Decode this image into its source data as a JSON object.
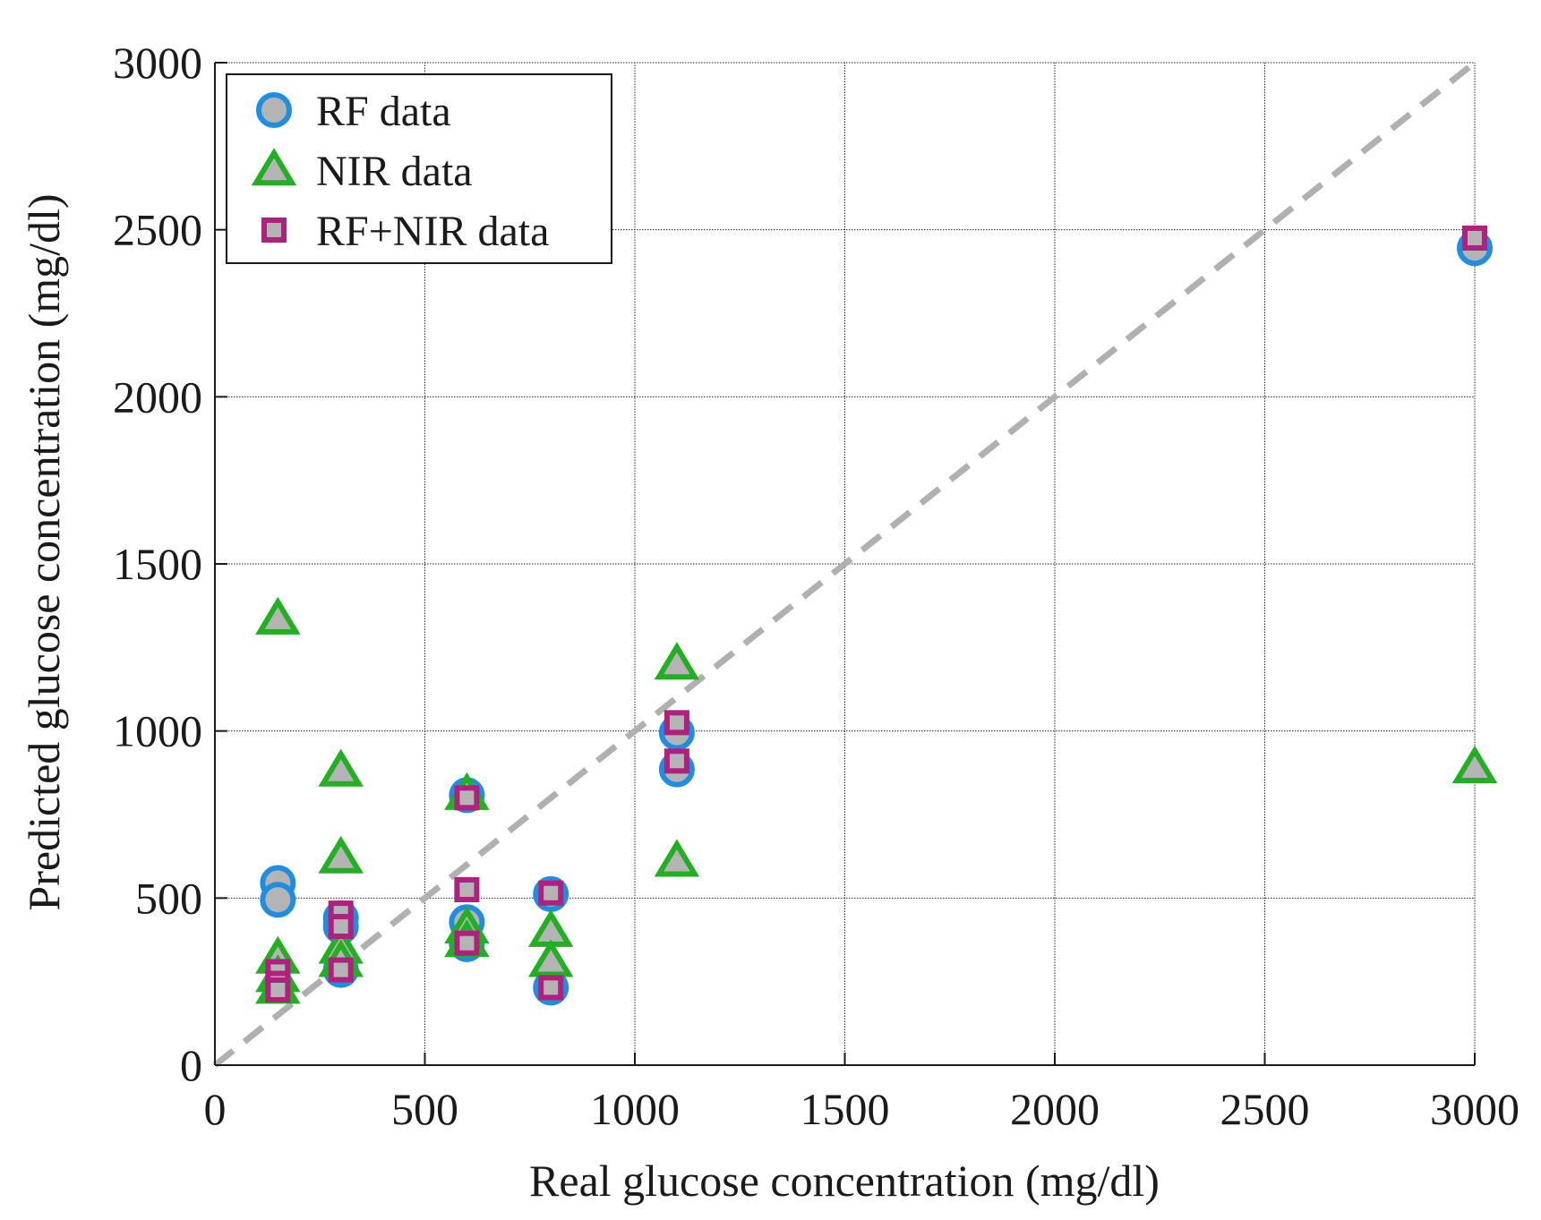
{
  "chart_data": {
    "type": "scatter",
    "title": "",
    "xlabel": "Real glucose concentration (mg/dl)",
    "ylabel": "Predicted glucose concentration (mg/dl)",
    "xlim": [
      0,
      3000
    ],
    "ylim": [
      0,
      3000
    ],
    "xticks": [
      0,
      500,
      1000,
      1500,
      2000,
      2500,
      3000
    ],
    "yticks": [
      0,
      500,
      1000,
      1500,
      2000,
      2500,
      3000
    ],
    "xtick_labels": [
      "0",
      "500",
      "1000",
      "1500",
      "2000",
      "2500",
      "3000"
    ],
    "ytick_labels": [
      "0",
      "500",
      "1000",
      "1500",
      "2000",
      "2500",
      "3000"
    ],
    "grid": true,
    "legend_position": "top-left",
    "reference_line": {
      "style": "dashed",
      "color": "#b0b0b0",
      "from": [
        0,
        0
      ],
      "to": [
        3000,
        3000
      ]
    },
    "series": [
      {
        "name": "RF data",
        "marker": "circle",
        "edge_color": "#1f8ee0",
        "face_color": "#b4b4b4",
        "points": [
          [
            150,
            545
          ],
          [
            150,
            495
          ],
          [
            300,
            440
          ],
          [
            300,
            415
          ],
          [
            300,
            285
          ],
          [
            600,
            808
          ],
          [
            600,
            428
          ],
          [
            600,
            362
          ],
          [
            800,
            512
          ],
          [
            800,
            232
          ],
          [
            1100,
            995
          ],
          [
            1100,
            885
          ],
          [
            3000,
            2445
          ]
        ]
      },
      {
        "name": "NIR data",
        "marker": "triangle",
        "edge_color": "#22b022",
        "face_color": "#b4b4b4",
        "points": [
          [
            150,
            1335
          ],
          [
            150,
            320
          ],
          [
            150,
            265
          ],
          [
            150,
            230
          ],
          [
            300,
            880
          ],
          [
            300,
            620
          ],
          [
            300,
            350
          ],
          [
            300,
            310
          ],
          [
            600,
            810
          ],
          [
            600,
            410
          ],
          [
            600,
            370
          ],
          [
            800,
            400
          ],
          [
            800,
            310
          ],
          [
            1100,
            1200
          ],
          [
            1100,
            610
          ],
          [
            3000,
            890
          ]
        ]
      },
      {
        "name": "RF+NIR data",
        "marker": "square",
        "edge_color": "#b0207f",
        "face_color": "#b4b4b4",
        "points": [
          [
            150,
            280
          ],
          [
            150,
            245
          ],
          [
            150,
            225
          ],
          [
            300,
            455
          ],
          [
            300,
            415
          ],
          [
            300,
            285
          ],
          [
            600,
            800
          ],
          [
            600,
            525
          ],
          [
            600,
            365
          ],
          [
            800,
            515
          ],
          [
            800,
            232
          ],
          [
            1100,
            1025
          ],
          [
            1100,
            910
          ],
          [
            3000,
            2475
          ]
        ]
      }
    ]
  }
}
